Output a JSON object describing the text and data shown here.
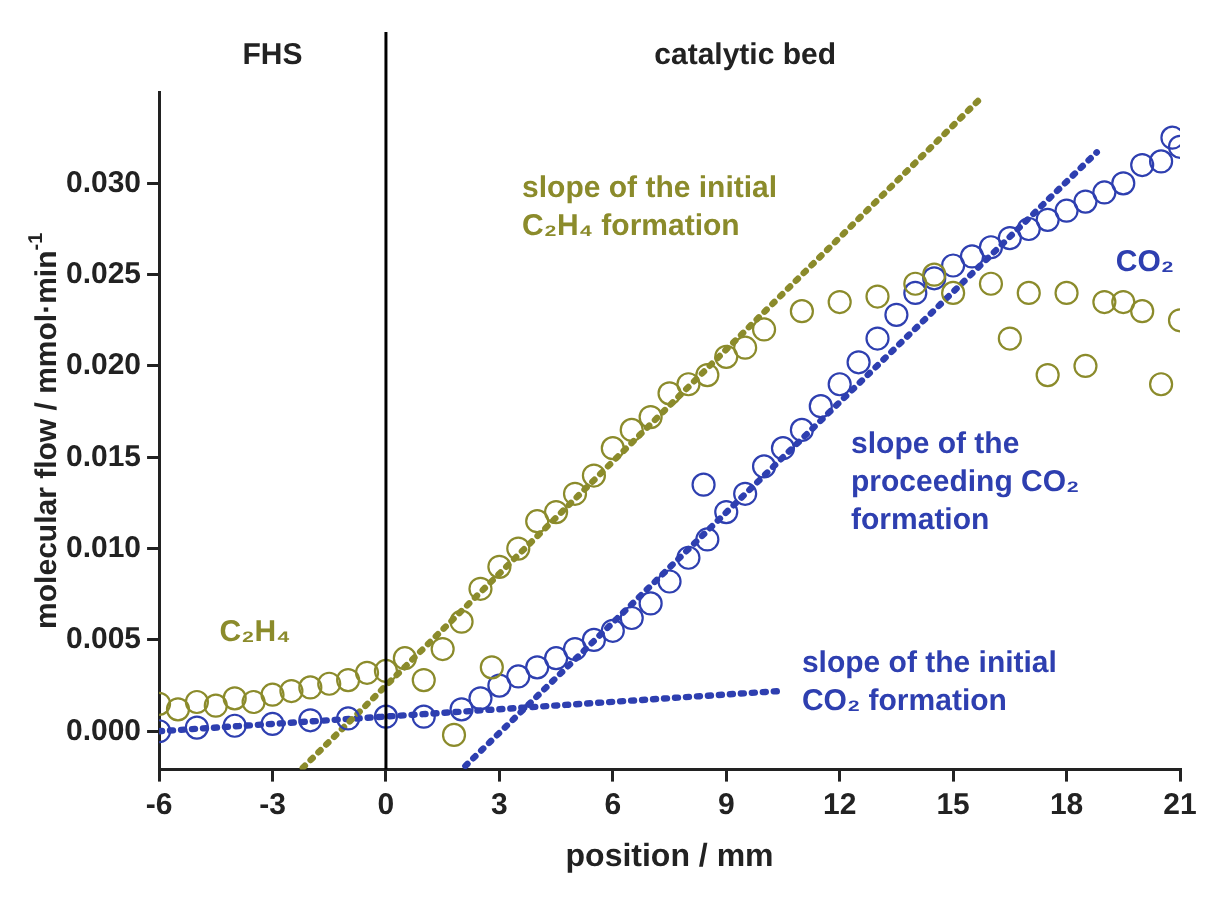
{
  "chart_data": {
    "type": "scatter",
    "xlabel": "position / mm",
    "ylabel": "molecular flow / mmol·min$^{-1}$",
    "annotations": [
      "FHS",
      "catalytic bed"
    ],
    "xlim": [
      -6,
      21
    ],
    "xticks": [
      -6,
      -3,
      0,
      3,
      6,
      9,
      12,
      15,
      18,
      21
    ],
    "ylim": [
      -0.0021,
      0.035
    ],
    "yticks": [
      {
        "value": 0,
        "label": "0.000"
      },
      {
        "value": 0.005,
        "label": "0.005"
      },
      {
        "value": 0.01,
        "label": "0.010"
      },
      {
        "value": 0.015,
        "label": "0.015"
      },
      {
        "value": 0.02,
        "label": "0.020"
      },
      {
        "value": 0.025,
        "label": "0.025"
      },
      {
        "value": 0.03,
        "label": "0.030"
      }
    ],
    "grid": false,
    "legend": false,
    "marker": "circle",
    "ref_lines": [
      {
        "axis": "x",
        "value": 0,
        "color": "#000000"
      }
    ],
    "series": [
      {
        "name": "C₂H₄",
        "color": "#8b8b2b",
        "x": [
          -6,
          -5.5,
          -5,
          -4.5,
          -4,
          -3.5,
          -3,
          -2.5,
          -2,
          -1.5,
          -1,
          -0.5,
          0,
          0.5,
          1,
          1.5,
          1.8,
          2,
          2.5,
          2.8,
          3,
          3.5,
          4,
          4.5,
          5,
          5.5,
          6,
          6.5,
          7,
          7.5,
          8,
          8.5,
          9,
          9.5,
          10,
          11,
          12,
          13,
          14,
          14.5,
          15,
          16,
          16.5,
          17,
          17.5,
          18,
          18.5,
          19,
          19.5,
          20,
          20.5,
          21
        ],
        "values": [
          0.0015,
          0.0012,
          0.0016,
          0.0014,
          0.0018,
          0.0016,
          0.002,
          0.0022,
          0.0024,
          0.0026,
          0.0028,
          0.0032,
          0.0033,
          0.004,
          0.0028,
          0.0045,
          -0.0002,
          0.006,
          0.0078,
          0.0035,
          0.009,
          0.01,
          0.0115,
          0.012,
          0.013,
          0.014,
          0.0155,
          0.0165,
          0.0172,
          0.0185,
          0.019,
          0.0195,
          0.0205,
          0.021,
          0.022,
          0.023,
          0.0235,
          0.0238,
          0.0245,
          0.025,
          0.024,
          0.0245,
          0.0215,
          0.024,
          0.0195,
          0.024,
          0.02,
          0.0235,
          0.0235,
          0.023,
          0.019,
          0.0225
        ]
      },
      {
        "name": "CO₂",
        "color": "#2e3fb0",
        "x": [
          -6,
          -5,
          -4,
          -3,
          -2,
          -1,
          0,
          1,
          2,
          2.5,
          3,
          3.5,
          4,
          4.5,
          5,
          5.5,
          6,
          6.5,
          7,
          7.5,
          8,
          8.4,
          8.5,
          9,
          9.5,
          10,
          10.5,
          11,
          11.5,
          12,
          12.5,
          13,
          13.5,
          14,
          14.5,
          15,
          15.5,
          16,
          16.5,
          17,
          17.5,
          18,
          18.5,
          19,
          19.5,
          20,
          20.5,
          20.8,
          21
        ],
        "values": [
          0,
          0.0002,
          0.0003,
          0.0004,
          0.0006,
          0.0007,
          0.0008,
          0.0008,
          0.0012,
          0.0018,
          0.0025,
          0.003,
          0.0035,
          0.004,
          0.0045,
          0.005,
          0.0055,
          0.0062,
          0.007,
          0.0082,
          0.0095,
          0.0135,
          0.0105,
          0.012,
          0.013,
          0.0145,
          0.0155,
          0.0165,
          0.0178,
          0.019,
          0.0202,
          0.0215,
          0.0228,
          0.024,
          0.0248,
          0.0255,
          0.026,
          0.0265,
          0.027,
          0.0275,
          0.028,
          0.0285,
          0.029,
          0.0295,
          0.03,
          0.031,
          0.0312,
          0.0325,
          0.032
        ]
      },
      {
        "name": "slope of the initial C₂H₄ formation",
        "type": "line",
        "marker": "none",
        "line_style": "dotted",
        "color": "#8b8b2b",
        "x": [
          -2.2,
          15.7
        ],
        "values": [
          -0.002,
          0.0346
        ]
      },
      {
        "name": "slope of the proceeding CO₂ formation",
        "type": "line",
        "marker": "none",
        "line_style": "dotted",
        "color": "#2e3fb0",
        "x": [
          2.1,
          18.8
        ],
        "values": [
          -0.0019,
          0.0317
        ]
      },
      {
        "name": "slope of the initial CO₂ formation",
        "type": "line",
        "marker": "none",
        "line_style": "dotted",
        "color": "#2e3fb0",
        "x": [
          -6,
          10.4
        ],
        "values": [
          0,
          0.0022
        ]
      }
    ]
  }
}
